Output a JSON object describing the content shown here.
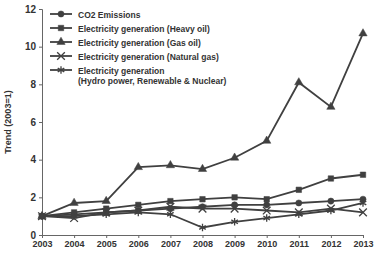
{
  "chart_data": {
    "type": "line",
    "y_label": "Trend (2003=1)",
    "x": [
      2003,
      2004,
      2005,
      2006,
      2007,
      2008,
      2009,
      2010,
      2011,
      2012,
      2013
    ],
    "xlim": [
      2003,
      2013
    ],
    "xticks": [
      2003,
      2004,
      2005,
      2006,
      2007,
      2008,
      2009,
      2010,
      2011,
      2012,
      2013
    ],
    "ylim": [
      0,
      12
    ],
    "yticks": [
      0,
      2,
      4,
      6,
      8,
      10,
      12
    ],
    "grid": false,
    "legend": "upper left",
    "series": [
      {
        "name": "CO2 Emissions",
        "color": "#404040",
        "marker": "circle",
        "line_style": "solid",
        "values": [
          1,
          1.1,
          1.2,
          1.3,
          1.4,
          1.5,
          1.6,
          1.6,
          1.7,
          1.8,
          1.9
        ]
      },
      {
        "name": "Electricity generation (Heavy oil)",
        "color": "#404040",
        "marker": "square",
        "line_style": "solid",
        "values": [
          1,
          1.2,
          1.4,
          1.6,
          1.8,
          1.9,
          2.0,
          1.9,
          2.4,
          3.0,
          3.2
        ]
      },
      {
        "name": "Electricity generation (Gas oil)",
        "color": "#404040",
        "marker": "triangle",
        "line_style": "solid",
        "values": [
          1,
          1.7,
          1.8,
          3.6,
          3.7,
          3.5,
          4.1,
          5.0,
          8.1,
          6.8,
          10.7
        ]
      },
      {
        "name": "Electricity generation (Natural gas)",
        "color": "#404040",
        "marker": "x",
        "line_style": "solid",
        "values": [
          1,
          0.9,
          1.2,
          1.3,
          1.5,
          1.4,
          1.4,
          1.3,
          1.2,
          1.4,
          1.2
        ]
      },
      {
        "name": "Electricity generation\n(Hydro power, Renewable & Nuclear)",
        "color": "#404040",
        "marker": "star",
        "line_style": "solid",
        "values": [
          1,
          1.0,
          1.1,
          1.2,
          1.1,
          0.4,
          0.7,
          0.9,
          1.1,
          1.3,
          1.7
        ]
      }
    ]
  }
}
